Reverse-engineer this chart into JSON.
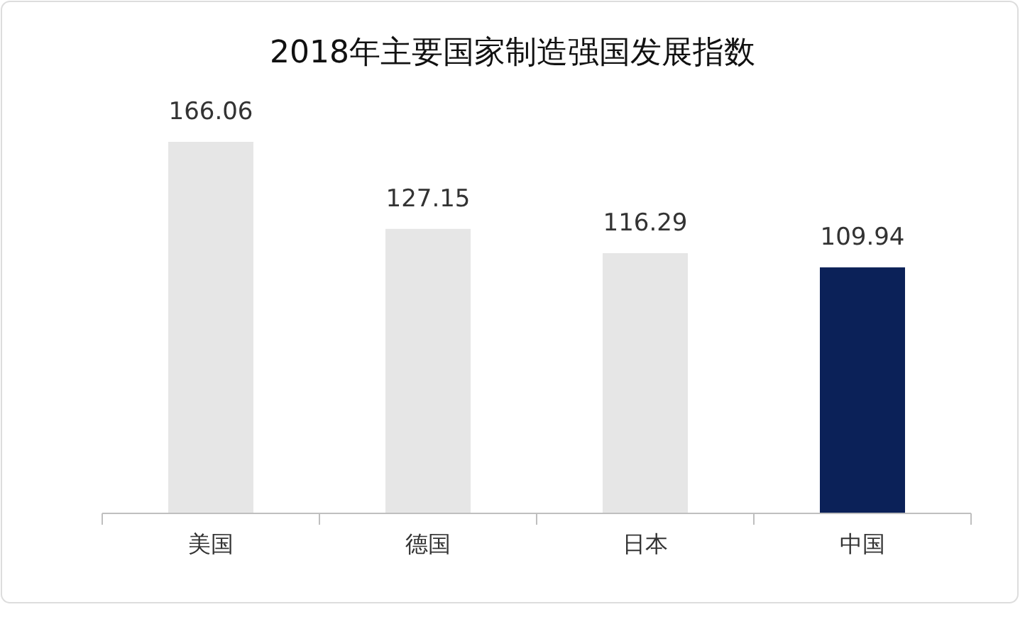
{
  "chart_data": {
    "type": "bar",
    "title": "2018年主要国家制造强国发展指数",
    "categories": [
      "美国",
      "德国",
      "日本",
      "中国"
    ],
    "values": [
      166.06,
      127.15,
      116.29,
      109.94
    ],
    "colors": [
      "#e6e6e6",
      "#e6e6e6",
      "#e6e6e6",
      "#0b2158"
    ],
    "data_labels": true
  }
}
